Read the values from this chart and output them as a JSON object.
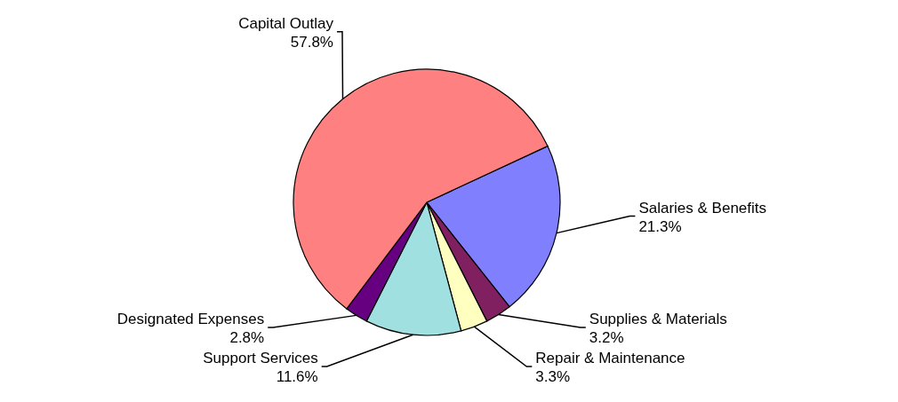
{
  "chart_data": {
    "type": "pie",
    "categories": [
      "Salaries & Benefits",
      "Supplies & Materials",
      "Repair & Maintenance",
      "Support Services",
      "Designated Expenses",
      "Capital Outlay"
    ],
    "values": [
      21.3,
      3.2,
      3.3,
      11.6,
      2.8,
      57.8
    ],
    "value_labels": [
      "21.3%",
      "3.2%",
      "3.3%",
      "11.6%",
      "2.8%",
      "57.8%"
    ],
    "colors": [
      "#8080ff",
      "#802060",
      "#ffffc0",
      "#a0e0e0",
      "#660080",
      "#ff8080"
    ]
  }
}
